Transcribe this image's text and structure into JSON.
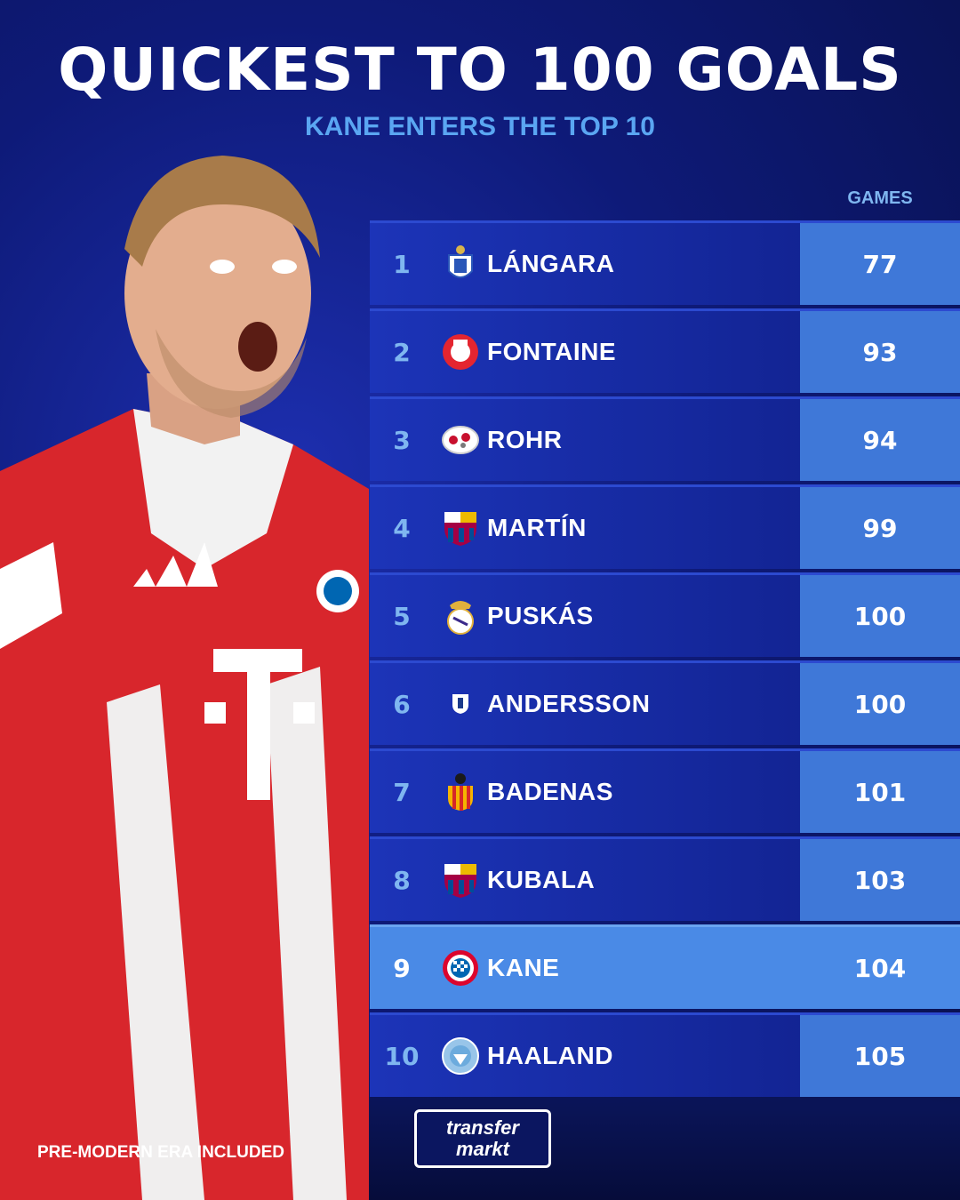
{
  "title": "QUICKEST TO 100 GOALS",
  "subtitle": "KANE ENTERS THE TOP 10",
  "table": {
    "games_header": "GAMES",
    "rows": [
      {
        "rank": "1",
        "name": "LÁNGARA",
        "games": "77",
        "crest": "real-oviedo-crest"
      },
      {
        "rank": "2",
        "name": "FONTAINE",
        "games": "93",
        "crest": "stade-de-reims-crest"
      },
      {
        "rank": "3",
        "name": "ROHR",
        "games": "94",
        "crest": "rohr-club-crest"
      },
      {
        "rank": "4",
        "name": "MARTÍN",
        "games": "99",
        "crest": "fc-barcelona-crest"
      },
      {
        "rank": "5",
        "name": "PUSKÁS",
        "games": "100",
        "crest": "real-madrid-crest"
      },
      {
        "rank": "6",
        "name": "ANDERSSON",
        "games": "100",
        "crest": "andersson-club-crest"
      },
      {
        "rank": "7",
        "name": "BADENAS",
        "games": "101",
        "crest": "valencia-crest"
      },
      {
        "rank": "8",
        "name": "KUBALA",
        "games": "103",
        "crest": "fc-barcelona-crest"
      },
      {
        "rank": "9",
        "name": "KANE",
        "games": "104",
        "crest": "bayern-munich-crest",
        "highlight": true
      },
      {
        "rank": "10",
        "name": "HAALAND",
        "games": "105",
        "crest": "manchester-city-crest"
      }
    ]
  },
  "footnote": "PRE-MODERN ERA INCLUDED",
  "logo": {
    "line1": "transfer",
    "line2": "markt"
  },
  "colors": {
    "background": "#0e1a78",
    "accent": "#5aa6f2",
    "highlight": "#4a8ae6",
    "games_cell": "#3f78d8"
  }
}
